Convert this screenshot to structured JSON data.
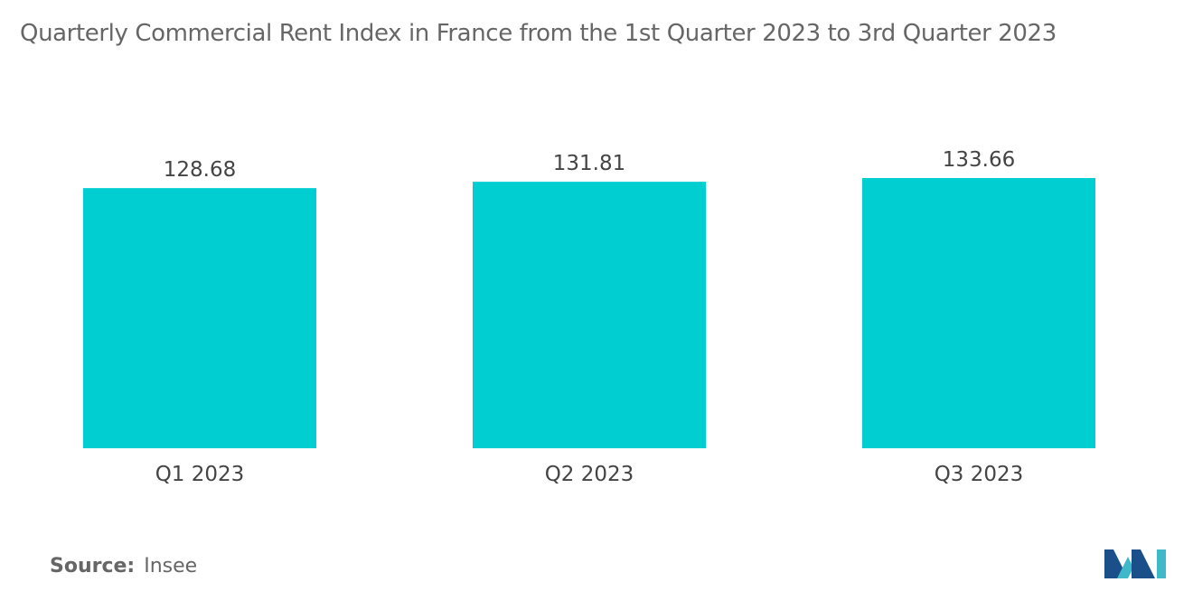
{
  "title": "Quarterly Commercial Rent Index in France from the 1st Quarter 2023 to 3rd Quarter 2023",
  "source_label": "Source:",
  "source_value": "Insee",
  "colors": {
    "bar": "#00CED1",
    "text": "#666666",
    "value_text": "#444444",
    "logo_dark": "#1B4F8A",
    "logo_light": "#3FB8C9"
  },
  "chart_data": {
    "type": "bar",
    "categories": [
      "Q1 2023",
      "Q2 2023",
      "Q3 2023"
    ],
    "values": [
      128.68,
      131.81,
      133.66
    ],
    "value_labels": [
      "128.68",
      "131.81",
      "133.66"
    ],
    "title": "Quarterly Commercial Rent Index in France from the 1st Quarter 2023 to 3rd Quarter 2023",
    "xlabel": "",
    "ylabel": "",
    "grid": false,
    "legend": "none"
  }
}
